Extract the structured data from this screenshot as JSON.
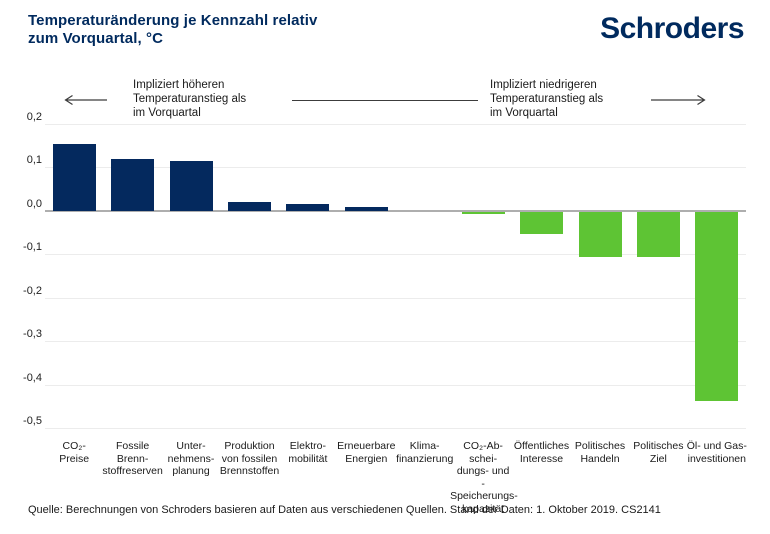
{
  "header": {
    "title": "Temperaturänderung je Kennzahl relativ\nzum Vorquartal, °C",
    "logo": "Schroders"
  },
  "annotations": {
    "left_text": "Impliziert höheren\nTemperaturanstieg als\nim Vorquartal",
    "right_text": "Impliziert niedrigeren\nTemperaturanstieg als\nim Vorquartal"
  },
  "chart_data": {
    "type": "bar",
    "title": "Temperaturänderung je Kennzahl relativ zum Vorquartal, °C",
    "categories": [
      "CO₂-\nPreise",
      "Fossile\nBrenn-\nstoffreserven",
      "Unter-\nnehmens-\nplanung",
      "Produktion\nvon fossilen\nBrennstoffen",
      "Elektro-\nmobilität",
      "Erneuerbare\nEnergien",
      "Klima-\nfinanzierung",
      "CO₂-Ab-\nschei-\ndungs- und\n-Speicherungs-\nkapazität",
      "Öffentliches\nInteresse",
      "Politisches\nHandeln",
      "Politisches\nZiel",
      "Öl- und Gas-\ninvestitionen"
    ],
    "values": [
      0.155,
      0.12,
      0.115,
      0.02,
      0.015,
      0.01,
      0.0,
      -0.005,
      -0.05,
      -0.105,
      -0.105,
      -0.435
    ],
    "ylim": [
      -0.5,
      0.2
    ],
    "y_ticks": [
      0.2,
      0.1,
      0.0,
      -0.1,
      -0.2,
      -0.3,
      -0.4,
      -0.5
    ],
    "y_tick_labels": [
      "0,2",
      "0,1",
      "0,0",
      "-0,1",
      "-0,2",
      "-0,3",
      "-0,4",
      "-0,5"
    ],
    "grid": true,
    "xlabel": "",
    "ylabel": "",
    "positive_color": "#04295e",
    "negative_color": "#5ec434",
    "axis_color": "#aeaeae",
    "grid_color": "#ececec"
  },
  "footer": {
    "source": "Quelle: Berechnungen von Schroders basieren auf Daten aus verschiedenen Quellen. Stand der Daten: 1. Oktober 2019. CS2141"
  }
}
